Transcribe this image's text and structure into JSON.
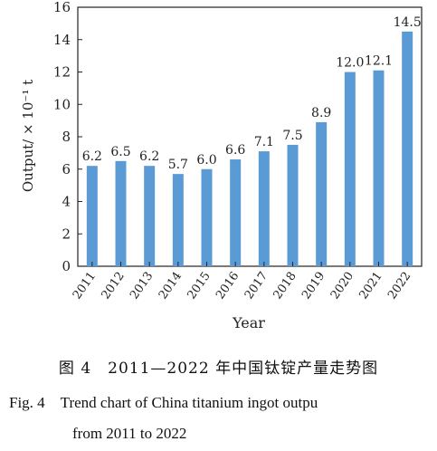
{
  "chart_data": {
    "type": "bar",
    "categories": [
      "2011",
      "2012",
      "2013",
      "2014",
      "2015",
      "2016",
      "2017",
      "2018",
      "2019",
      "2020",
      "2021",
      "2022"
    ],
    "values": [
      6.2,
      6.5,
      6.2,
      5.7,
      6.0,
      6.6,
      7.1,
      7.5,
      8.9,
      12.0,
      12.1,
      14.5
    ],
    "data_labels": [
      "6.2",
      "6.5",
      "6.2",
      "5.7",
      "6.0",
      "6.6",
      "7.1",
      "7.5",
      "8.9",
      "12.0",
      "12.1",
      "14.5"
    ],
    "xlabel": "Year",
    "ylabel": "Output/ × 10⁻¹ t",
    "ylim": [
      0,
      16
    ],
    "yticks": [
      "0",
      "2",
      "4",
      "6",
      "8",
      "10",
      "12",
      "14",
      "16"
    ],
    "grid": false,
    "bar_color": "#5b9bd5"
  },
  "caption": {
    "cn": "图 4　2011—2022 年中国钛锭产量走势图",
    "en_line1": "Fig. 4　Trend chart of China titanium ingot outpu",
    "en_line2": "from 2011 to 2022"
  }
}
